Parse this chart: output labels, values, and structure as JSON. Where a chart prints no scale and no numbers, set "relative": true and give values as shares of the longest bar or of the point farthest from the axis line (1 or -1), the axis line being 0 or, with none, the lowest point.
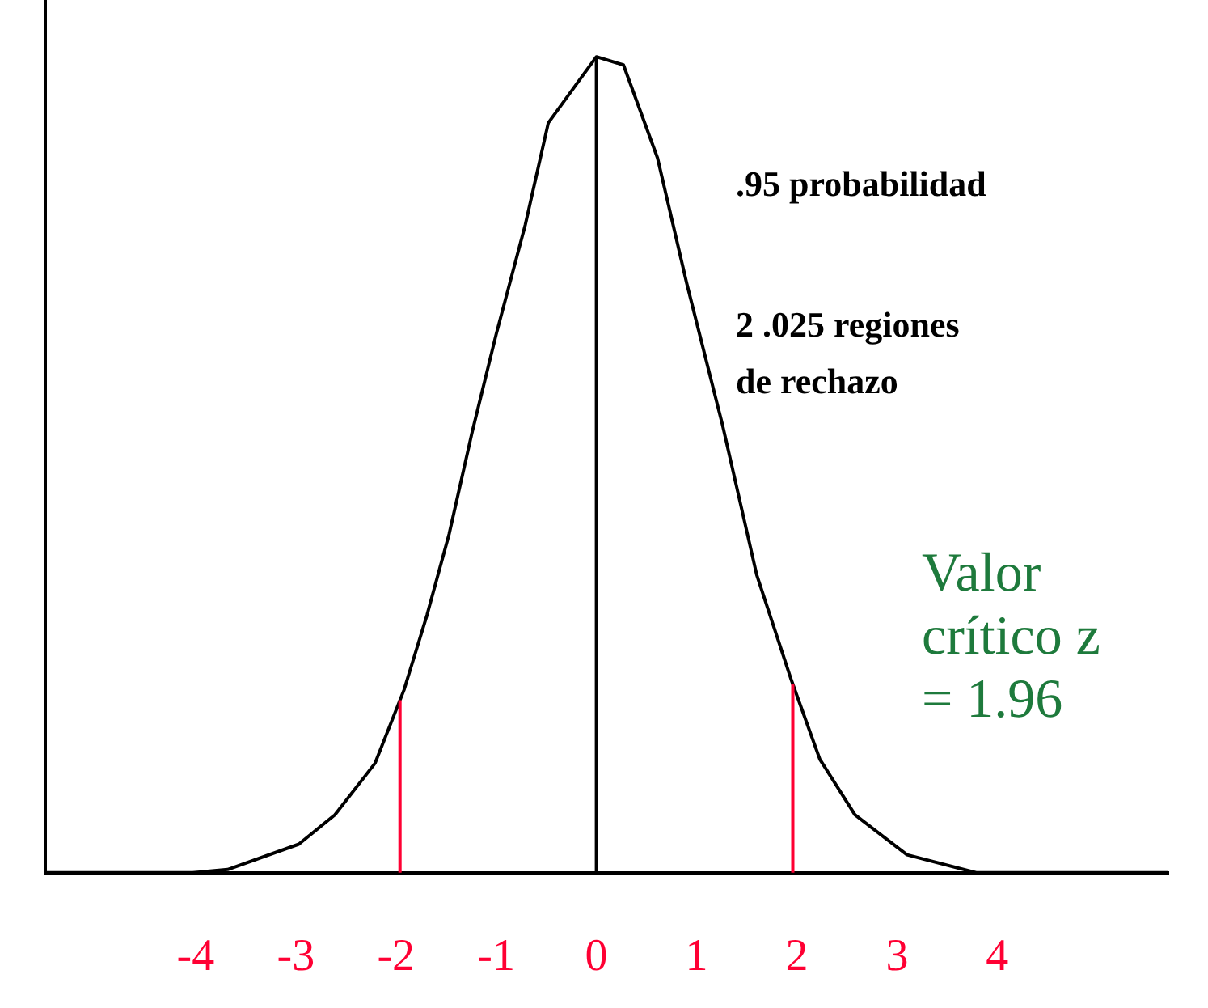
{
  "chart_data": {
    "type": "line",
    "relative": true,
    "x": [
      -5.5,
      -4.03,
      -3.68,
      -2.97,
      -2.61,
      -2.21,
      -1.92,
      -1.69,
      -1.47,
      -1.24,
      -1.0,
      -0.71,
      -0.48,
      0,
      0.27,
      0.61,
      0.9,
      1.26,
      1.6,
      1.94,
      2.23,
      2.58,
      3.1,
      3.79,
      5.7
    ],
    "series": [
      {
        "color": "#000000",
        "values": [
          0,
          0,
          0.004,
          0.035,
          0.071,
          0.134,
          0.224,
          0.316,
          0.415,
          0.54,
          0.66,
          0.794,
          0.919,
          1,
          0.99,
          0.876,
          0.723,
          0.548,
          0.365,
          0.238,
          0.139,
          0.071,
          0.022,
          0,
          0
        ]
      }
    ],
    "xlim": [
      -5.5,
      5.7
    ],
    "xticks": [
      -4,
      -3,
      -2,
      -1,
      0,
      1,
      2,
      3,
      4
    ],
    "ref_lines": [
      {
        "axis": "x",
        "value": -1.96,
        "color": "#ff0033"
      },
      {
        "axis": "x",
        "value": 1.96,
        "color": "#ff0033"
      },
      {
        "axis": "x",
        "value": 0,
        "color": "#000000"
      }
    ],
    "annotations": [
      ".95 probabilidad",
      "2 .025 regiones de rechazo",
      "Valor crítico z = 1.96"
    ],
    "legend": false,
    "marker": "none",
    "line_style": "solid"
  }
}
